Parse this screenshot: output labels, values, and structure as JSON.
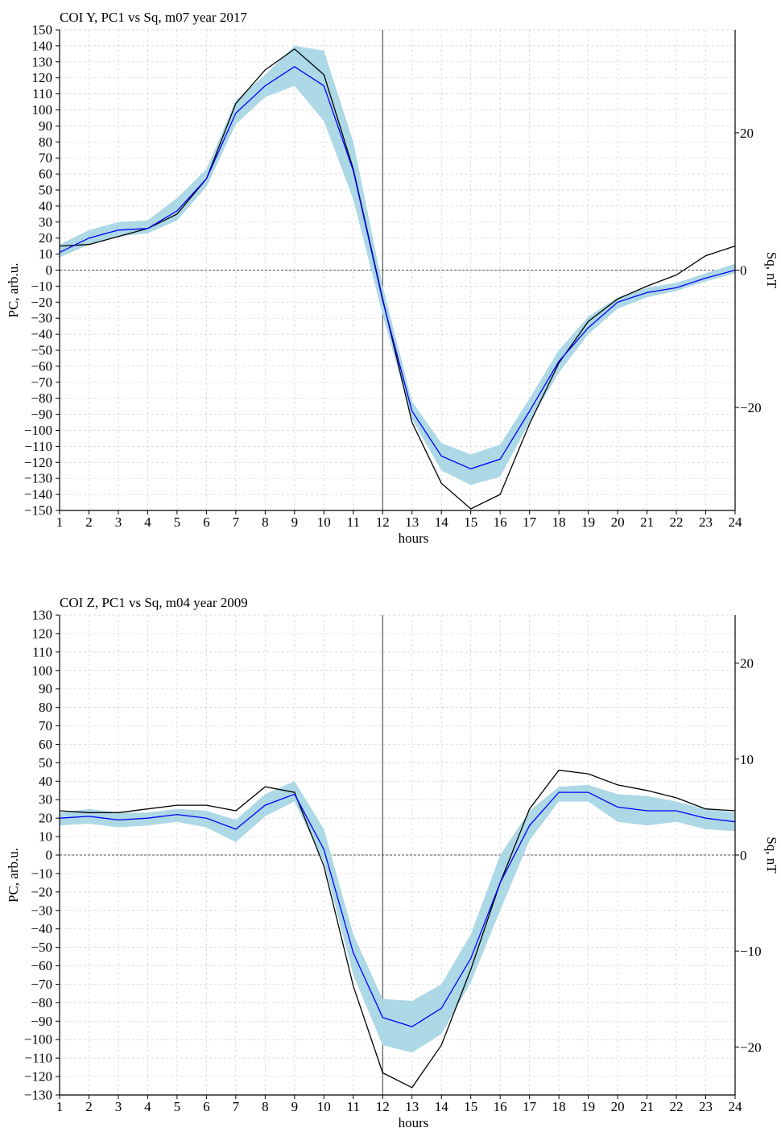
{
  "colors": {
    "band": "#add8e6",
    "pc_line": "#0000ff",
    "sq_line": "#000000",
    "grid": "#d0d0d0",
    "axis": "#000000"
  },
  "chart_data": [
    {
      "type": "line",
      "title": "COI Y, PC1 vs Sq, m07 year 2017",
      "xlabel": "hours",
      "ylabel": "PC, arb.u.",
      "y2label": "Sq, nT",
      "x": [
        1,
        2,
        3,
        4,
        5,
        6,
        7,
        8,
        9,
        10,
        11,
        12,
        13,
        14,
        15,
        16,
        17,
        18,
        19,
        20,
        21,
        22,
        23,
        24
      ],
      "xlim": [
        1,
        24
      ],
      "ylim": [
        -150,
        150
      ],
      "yticks": [
        150,
        140,
        130,
        120,
        110,
        100,
        90,
        80,
        70,
        60,
        50,
        40,
        30,
        20,
        10,
        0,
        -10,
        -20,
        -30,
        -40,
        -50,
        -60,
        -70,
        -80,
        -90,
        -100,
        -110,
        -120,
        -130,
        -140,
        -150
      ],
      "ytick_labels": [
        "150",
        "140",
        "130",
        "120",
        "110",
        "100",
        "90",
        "80",
        "70",
        "60",
        "50",
        "40",
        "30",
        "20",
        "10",
        "0",
        "−10",
        "−20",
        "−30",
        "−40",
        "−50",
        "−60",
        "−70",
        "−80",
        "−90",
        "−100",
        "−110",
        "−120",
        "−130",
        "−140",
        "−150"
      ],
      "y2lim": [
        -35,
        35
      ],
      "y2ticks": [
        20,
        0,
        -20
      ],
      "y2tick_labels": [
        "20",
        "0",
        "−20"
      ],
      "vline_x": 12,
      "hline_y": 0,
      "grid": true,
      "series": [
        {
          "role": "band",
          "lower": [
            8,
            16,
            21,
            23,
            31,
            52,
            91,
            108,
            115,
            93,
            44,
            -28,
            -93,
            -125,
            -134,
            -129,
            -95,
            -64,
            -40,
            -24,
            -17,
            -13,
            -7,
            -2
          ],
          "upper": [
            16,
            25,
            30,
            31,
            45,
            63,
            106,
            122,
            140,
            137,
            80,
            -10,
            -82,
            -108,
            -115,
            -109,
            -80,
            -50,
            -29,
            -17,
            -11,
            -8,
            -2,
            4
          ]
        },
        {
          "role": "pc",
          "values": [
            11,
            20,
            25,
            26,
            37,
            57,
            98,
            115,
            127,
            115,
            62,
            -19,
            -88,
            -116,
            -124,
            -118,
            -88,
            -57,
            -36,
            -20,
            -14,
            -11,
            -5,
            0
          ]
        },
        {
          "role": "sq",
          "values": [
            15,
            16,
            21,
            26,
            35,
            57,
            104,
            125,
            138,
            122,
            63,
            -18,
            -95,
            -133,
            -149,
            -140,
            -96,
            -58,
            -32,
            -18,
            -10,
            -3,
            9,
            15
          ]
        }
      ]
    },
    {
      "type": "line",
      "title": "COI Z, PC1 vs Sq, m04 year 2009",
      "xlabel": "hours",
      "ylabel": "PC, arb.u.",
      "y2label": "Sq, nT",
      "x": [
        1,
        2,
        3,
        4,
        5,
        6,
        7,
        8,
        9,
        10,
        11,
        12,
        13,
        14,
        15,
        16,
        17,
        18,
        19,
        20,
        21,
        22,
        23,
        24
      ],
      "xlim": [
        1,
        24
      ],
      "ylim": [
        -130,
        130
      ],
      "yticks": [
        130,
        120,
        110,
        100,
        90,
        80,
        70,
        60,
        50,
        40,
        30,
        20,
        10,
        0,
        -10,
        -20,
        -30,
        -40,
        -50,
        -60,
        -70,
        -80,
        -90,
        -100,
        -110,
        -120,
        -130
      ],
      "ytick_labels": [
        "130",
        "120",
        "110",
        "100",
        "90",
        "80",
        "70",
        "60",
        "50",
        "40",
        "30",
        "20",
        "10",
        "0",
        "−10",
        "−20",
        "−30",
        "−40",
        "−50",
        "−60",
        "−70",
        "−80",
        "−90",
        "−100",
        "−110",
        "−120",
        "−130"
      ],
      "y2lim": [
        -25,
        25
      ],
      "y2ticks": [
        20,
        10,
        0,
        -10,
        -20
      ],
      "y2tick_labels": [
        "20",
        "10",
        "0",
        "−10",
        "−20"
      ],
      "vline_x": 12,
      "hline_y": 0,
      "grid": true,
      "series": [
        {
          "role": "band",
          "lower": [
            16,
            17,
            15,
            16,
            18,
            15,
            7,
            21,
            29,
            -4,
            -65,
            -103,
            -107,
            -97,
            -69,
            -30,
            8,
            29,
            29,
            18,
            16,
            18,
            14,
            13
          ],
          "upper": [
            23,
            25,
            23,
            23,
            25,
            24,
            19,
            33,
            40,
            14,
            -43,
            -78,
            -79,
            -70,
            -43,
            0,
            24,
            37,
            38,
            33,
            32,
            29,
            25,
            23
          ],
          "label": ""
        },
        {
          "role": "pc",
          "values": [
            20,
            21,
            19,
            20,
            22,
            20,
            14,
            27,
            33,
            3,
            -53,
            -88,
            -93,
            -83,
            -56,
            -15,
            16,
            34,
            34,
            26,
            24,
            24,
            20,
            18
          ]
        },
        {
          "role": "sq",
          "values": [
            24,
            23,
            23,
            25,
            27,
            27,
            24,
            37,
            34,
            -6,
            -71,
            -118,
            -126,
            -103,
            -62,
            -15,
            25,
            46,
            44,
            38,
            35,
            31,
            25,
            24
          ]
        }
      ]
    }
  ]
}
